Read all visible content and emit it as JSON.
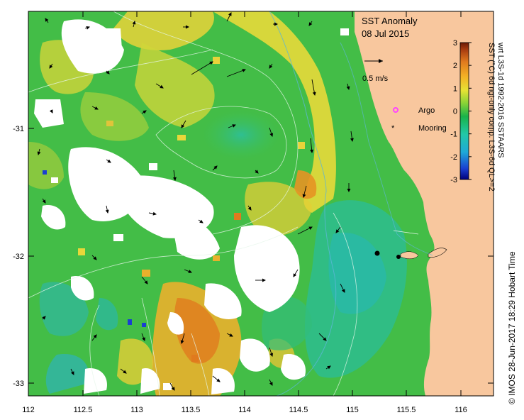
{
  "title": "SST Anomaly",
  "date": "08 Jul 2015",
  "vector_scale_label": "0.5 m/s",
  "legend": {
    "argo_label": "Argo",
    "mooring_label": "Mooring",
    "argo_color": "#ff44ff",
    "mooring_color": "#000000"
  },
  "colorbar": {
    "ticks": [
      "3",
      "2",
      "1",
      "0",
      "-1",
      "-2",
      "-3"
    ],
    "label_line1": "SST (°C) 6d ngt-only comp. L3S-6d QL>=2",
    "label_line2": "wrt L3S-1d 1992-2016 SSTAARS",
    "colors": [
      "#00007a",
      "#1a3fd1",
      "#1fa9d8",
      "#22c8a8",
      "#19b34a",
      "#8cd436",
      "#e6e234",
      "#f3b325",
      "#e07a1e",
      "#a63a0f",
      "#6b1a05"
    ]
  },
  "axes": {
    "x_ticks": [
      "112",
      "112.5",
      "113",
      "113.5",
      "114",
      "114.5",
      "115",
      "115.5",
      "116"
    ],
    "y_ticks": [
      "-31",
      "-32",
      "-33"
    ]
  },
  "credit": "© IMOS 28-Jun-2017 18:29 Hobart Time",
  "colors": {
    "land": "#f8c79e",
    "ocean_green": "#3fbf4a",
    "cloud": "#ffffff"
  }
}
